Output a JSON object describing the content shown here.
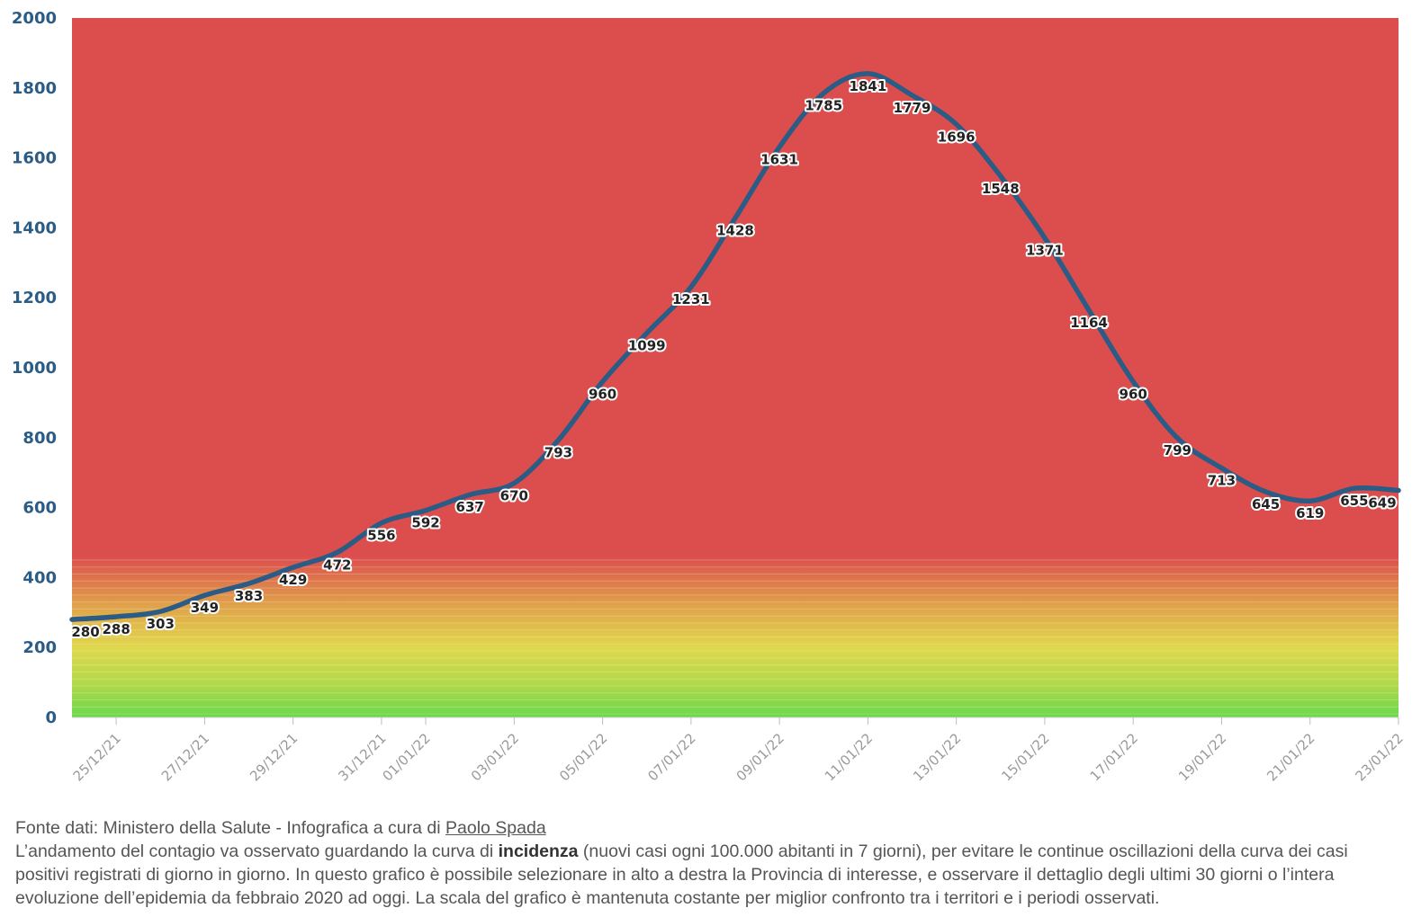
{
  "chart_data": {
    "type": "line",
    "title": "",
    "xlabel": "",
    "ylabel": "",
    "ylim": [
      0,
      2000
    ],
    "yticks": [
      0,
      200,
      400,
      600,
      800,
      1000,
      1200,
      1400,
      1600,
      1800,
      2000
    ],
    "xticks": [
      "25/12/21",
      "27/12/21",
      "29/12/21",
      "31/12/21",
      "01/01/22",
      "03/01/22",
      "05/01/22",
      "07/01/22",
      "09/01/22",
      "11/01/22",
      "13/01/22",
      "15/01/22",
      "17/01/22",
      "19/01/22",
      "21/01/22",
      "23/01/22"
    ],
    "x": [
      "24/12/21",
      "25/12/21",
      "26/12/21",
      "27/12/21",
      "28/12/21",
      "29/12/21",
      "30/12/21",
      "31/12/21",
      "01/01/22",
      "02/01/22",
      "03/01/22",
      "04/01/22",
      "05/01/22",
      "06/01/22",
      "07/01/22",
      "08/01/22",
      "09/01/22",
      "10/01/22",
      "11/01/22",
      "12/01/22",
      "13/01/22",
      "14/01/22",
      "15/01/22",
      "16/01/22",
      "17/01/22",
      "18/01/22",
      "19/01/22",
      "20/01/22",
      "21/01/22",
      "22/01/22",
      "23/01/22"
    ],
    "series": [
      {
        "values": [
          280,
          288,
          303,
          349,
          383,
          429,
          472,
          556,
          592,
          637,
          670,
          793,
          960,
          1099,
          1231,
          1428,
          1631,
          1785,
          1841,
          1779,
          1696,
          1548,
          1371,
          1164,
          960,
          799,
          713,
          645,
          619,
          655,
          649
        ]
      }
    ],
    "background": "color gradient by value: green at low values, yellow around 200-300, red above about 460",
    "colors": {
      "line": "#2b5c85",
      "high": "#dc4e4e",
      "mid": "#e0d84c",
      "low": "#6ad84a"
    },
    "grid": false,
    "legend": "none"
  },
  "footer": {
    "source_prefix": "Fonte dati: Ministero della Salute - Infografica a cura di ",
    "author": "Paolo Spada",
    "desc_before": "L’andamento del contagio va osservato guardando la curva di ",
    "desc_bold": "incidenza",
    "desc_after": " (nuovi casi ogni 100.000 abitanti in 7 giorni), per evitare le continue oscillazioni della curva dei casi positivi registrati di giorno in giorno. In questo grafico è possibile selezionare in alto a destra la Provincia di interesse, e osservare il dettaglio degli ultimi 30 giorni o l’intera evoluzione dell’epidemia da febbraio 2020 ad oggi. La scala del grafico è mantenuta costante per miglior confronto tra i territori e i periodi osservati."
  }
}
